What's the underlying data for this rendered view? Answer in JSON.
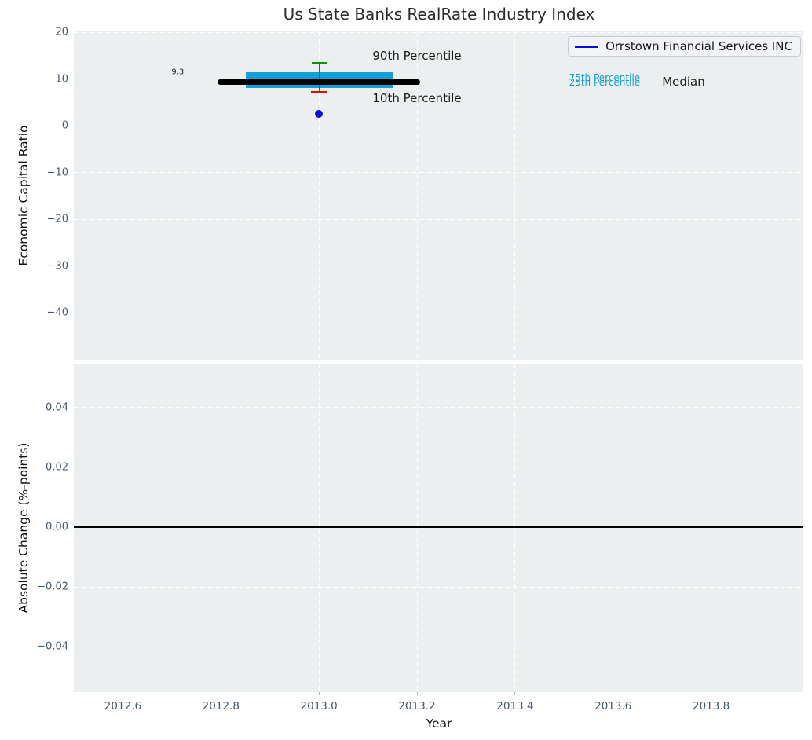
{
  "title": "Us State Banks RealRate Industry Index",
  "legend": {
    "label": "Orrstown Financial Services INC"
  },
  "colors": {
    "figure_bg": "#ffffff",
    "axes_bg": "#ebeff0",
    "grid": "#ffffff",
    "tick_label": "#47586b",
    "box_fill": "#149fd8",
    "median_line": "#000000",
    "whisker_line": "#555555",
    "p90_cap": "#089308",
    "p10_cap": "#f10000",
    "company": "#0b0be0",
    "zero_line": "#000000",
    "legend_bg": "#f2f3f7",
    "legend_border": "#c9cbd4"
  },
  "chart_data": [
    {
      "type": "box",
      "panel": "top",
      "title": "Us State Banks RealRate Industry Index",
      "ylabel": "Economic Capital Ratio",
      "xlabel": "",
      "grid": true,
      "legend_position": "upper right",
      "xlim": [
        2012.5,
        2013.988
      ],
      "ylim": [
        -50,
        20.2
      ],
      "xticks": [
        {
          "value": 2012.6,
          "label": "2012.6"
        },
        {
          "value": 2012.8,
          "label": "2012.8"
        },
        {
          "value": 2013.0,
          "label": "2013.0"
        },
        {
          "value": 2013.2,
          "label": "2013.2"
        },
        {
          "value": 2013.4,
          "label": "2013.4"
        },
        {
          "value": 2013.6,
          "label": "2013.6"
        },
        {
          "value": 2013.8,
          "label": "2013.8"
        }
      ],
      "x_tick_labels_visible": false,
      "yticks": [
        {
          "value": 20,
          "label": "20"
        },
        {
          "value": 10,
          "label": "10"
        },
        {
          "value": 0,
          "label": "0"
        },
        {
          "value": -10,
          "label": "−10"
        },
        {
          "value": -20,
          "label": "−20"
        },
        {
          "value": -30,
          "label": "−30"
        },
        {
          "value": -40,
          "label": "−40"
        }
      ],
      "series": {
        "year": 2013.0,
        "median": 9.3,
        "p75": 11.4,
        "p25": 8.1,
        "p90": 13.4,
        "p10": 7.2,
        "company_name": "Orrstown Financial Services INC",
        "company_value": 2.5,
        "box_x_span": [
          2012.85,
          2013.15
        ],
        "median_x_span": [
          2012.8,
          2013.2
        ]
      },
      "annotations": [
        {
          "text": "9.3",
          "x": 2012.712,
          "y": 11.4,
          "anchor": "center",
          "size": 10,
          "color": "#1a1a1a"
        },
        {
          "text": "90th Percentile",
          "x": 2013.2,
          "y": 15.0,
          "anchor": "center",
          "size": 15,
          "color": "#1a1a1a"
        },
        {
          "text": "10th Percentile",
          "x": 2013.2,
          "y": 5.9,
          "anchor": "center",
          "size": 15,
          "color": "#1a1a1a"
        },
        {
          "text": "75th Percentile",
          "x": 2013.51,
          "y": 10.3,
          "anchor": "left",
          "size": 12,
          "color": "#149fd8"
        },
        {
          "text": "25th Percentile",
          "x": 2013.51,
          "y": 9.3,
          "anchor": "left",
          "size": 12,
          "color": "#149fd8"
        },
        {
          "text": "Median",
          "x": 2013.7,
          "y": 9.5,
          "anchor": "left",
          "size": 15,
          "color": "#1a1a1a"
        }
      ]
    },
    {
      "type": "line",
      "panel": "bottom",
      "ylabel": "Absolute Change (%-points)",
      "xlabel": "Year",
      "grid": true,
      "xlim": [
        2012.5,
        2013.988
      ],
      "ylim": [
        -0.0551,
        0.0546
      ],
      "xticks": [
        {
          "value": 2012.6,
          "label": "2012.6"
        },
        {
          "value": 2012.8,
          "label": "2012.8"
        },
        {
          "value": 2013.0,
          "label": "2013.0"
        },
        {
          "value": 2013.2,
          "label": "2013.2"
        },
        {
          "value": 2013.4,
          "label": "2013.4"
        },
        {
          "value": 2013.6,
          "label": "2013.6"
        },
        {
          "value": 2013.8,
          "label": "2013.8"
        }
      ],
      "x_tick_labels_visible": true,
      "yticks": [
        {
          "value": 0.04,
          "label": "0.04"
        },
        {
          "value": 0.02,
          "label": "0.02"
        },
        {
          "value": 0.0,
          "label": "0.00"
        },
        {
          "value": -0.02,
          "label": "−0.02"
        },
        {
          "value": -0.04,
          "label": "−0.04"
        }
      ],
      "zero_line_y": 0.0
    }
  ]
}
